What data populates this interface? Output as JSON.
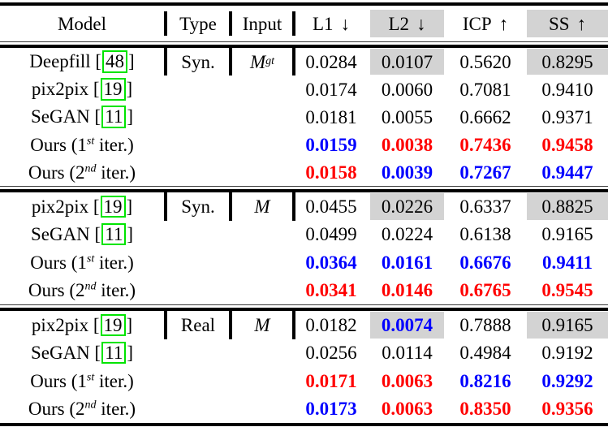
{
  "colors": {
    "best": "#ff0000",
    "second_best": "#0000ff",
    "text": "#000000",
    "column_stripe": "#d3d3d3",
    "citation_box": "#00e400"
  },
  "header": {
    "model": "Model",
    "type": "Type",
    "input": "Input",
    "metrics": [
      {
        "label": "L1",
        "arrow": "↓",
        "striped": false
      },
      {
        "label": "L2",
        "arrow": "↓",
        "striped": true
      },
      {
        "label": "ICP",
        "arrow": "↑",
        "striped": false
      },
      {
        "label": "SS",
        "arrow": "↑",
        "striped": true
      }
    ]
  },
  "sections": [
    {
      "type": "Syn.",
      "input": {
        "base": "M",
        "sup": "gt"
      },
      "rows": [
        {
          "model": {
            "name": "Deepfill",
            "cite": "48"
          },
          "values": [
            "0.0284",
            "0.0107",
            "0.5620",
            "0.8295"
          ],
          "styles": [
            "plain",
            "plain",
            "plain",
            "plain"
          ]
        },
        {
          "model": {
            "name": "pix2pix",
            "cite": "19"
          },
          "values": [
            "0.0174",
            "0.0060",
            "0.7081",
            "0.9410"
          ],
          "styles": [
            "plain",
            "plain",
            "plain",
            "plain"
          ]
        },
        {
          "model": {
            "name": "SeGAN",
            "cite": "11"
          },
          "values": [
            "0.0181",
            "0.0055",
            "0.6662",
            "0.9371"
          ],
          "styles": [
            "plain",
            "plain",
            "plain",
            "plain"
          ]
        },
        {
          "model": {
            "pre": "Ours (1",
            "sup": "st",
            "post": " iter.)"
          },
          "values": [
            "0.0159",
            "0.0038",
            "0.7436",
            "0.9458"
          ],
          "styles": [
            "second",
            "best",
            "best",
            "best"
          ]
        },
        {
          "model": {
            "pre": "Ours (2",
            "sup": "nd",
            "post": " iter.)"
          },
          "values": [
            "0.0158",
            "0.0039",
            "0.7267",
            "0.9447"
          ],
          "styles": [
            "best",
            "second",
            "second",
            "second"
          ]
        }
      ]
    },
    {
      "type": "Syn.",
      "input": {
        "base": "M",
        "sup": ""
      },
      "rows": [
        {
          "model": {
            "name": "pix2pix",
            "cite": "19"
          },
          "values": [
            "0.0455",
            "0.0226",
            "0.6337",
            "0.8825"
          ],
          "styles": [
            "plain",
            "plain",
            "plain",
            "plain"
          ]
        },
        {
          "model": {
            "name": "SeGAN",
            "cite": "11"
          },
          "values": [
            "0.0499",
            "0.0224",
            "0.6138",
            "0.9165"
          ],
          "styles": [
            "plain",
            "plain",
            "plain",
            "plain"
          ]
        },
        {
          "model": {
            "pre": "Ours (1",
            "sup": "st",
            "post": " iter.)"
          },
          "values": [
            "0.0364",
            "0.0161",
            "0.6676",
            "0.9411"
          ],
          "styles": [
            "second",
            "second",
            "second",
            "second"
          ]
        },
        {
          "model": {
            "pre": "Ours (2",
            "sup": "nd",
            "post": " iter.)"
          },
          "values": [
            "0.0341",
            "0.0146",
            "0.6765",
            "0.9545"
          ],
          "styles": [
            "best",
            "best",
            "best",
            "best"
          ]
        }
      ]
    },
    {
      "type": "Real",
      "input": {
        "base": "M",
        "sup": ""
      },
      "rows": [
        {
          "model": {
            "name": "pix2pix",
            "cite": "19"
          },
          "values": [
            "0.0182",
            "0.0074",
            "0.7888",
            "0.9165"
          ],
          "styles": [
            "plain",
            "second",
            "plain",
            "plain"
          ]
        },
        {
          "model": {
            "name": "SeGAN",
            "cite": "11"
          },
          "values": [
            "0.0256",
            "0.0114",
            "0.4984",
            "0.9192"
          ],
          "styles": [
            "plain",
            "plain",
            "plain",
            "plain"
          ]
        },
        {
          "model": {
            "pre": "Ours (1",
            "sup": "st",
            "post": " iter.)"
          },
          "values": [
            "0.0171",
            "0.0063",
            "0.8216",
            "0.9292"
          ],
          "styles": [
            "best",
            "best",
            "second",
            "second"
          ]
        },
        {
          "model": {
            "pre": "Ours (2",
            "sup": "nd",
            "post": " iter.)"
          },
          "values": [
            "0.0173",
            "0.0063",
            "0.8350",
            "0.9356"
          ],
          "styles": [
            "second",
            "best",
            "best",
            "best"
          ]
        }
      ]
    }
  ]
}
